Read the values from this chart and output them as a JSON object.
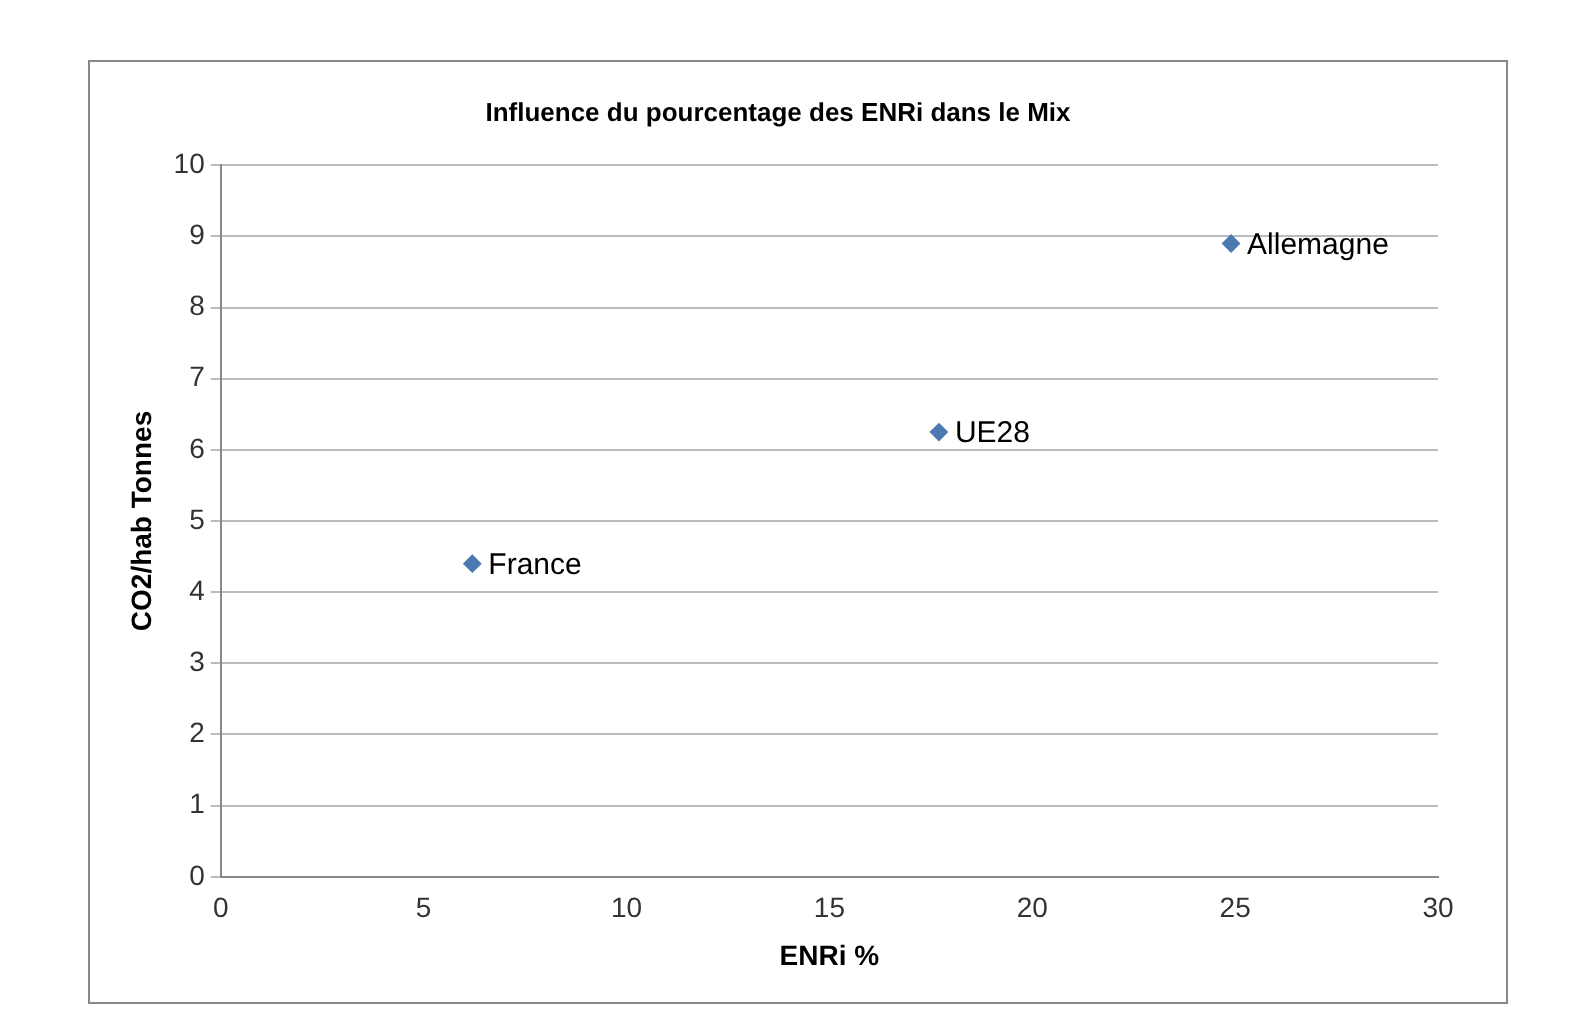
{
  "chart_data": {
    "type": "scatter",
    "title": "Influence du pourcentage des ENRi dans le Mix",
    "xlabel": "ENRi %",
    "ylabel": "CO2/hab Tonnes",
    "x": [
      6.2,
      17.7,
      24.9
    ],
    "values": [
      4.4,
      6.25,
      8.9
    ],
    "color": "#4a7ab0",
    "marker": "diamond",
    "xlim": [
      0,
      30
    ],
    "xticks": [
      0,
      5,
      10,
      15,
      20,
      25,
      30
    ],
    "ylim": [
      0,
      10
    ],
    "yticks": [
      0,
      1,
      2,
      3,
      4,
      5,
      6,
      7,
      8,
      9,
      10
    ],
    "grid": "y",
    "legend": false,
    "annotations": [
      {
        "text": "France",
        "x": 6.2,
        "y": 4.4
      },
      {
        "text": "UE28",
        "x": 17.7,
        "y": 6.25
      },
      {
        "text": "Allemagne",
        "x": 24.9,
        "y": 8.9
      }
    ]
  }
}
